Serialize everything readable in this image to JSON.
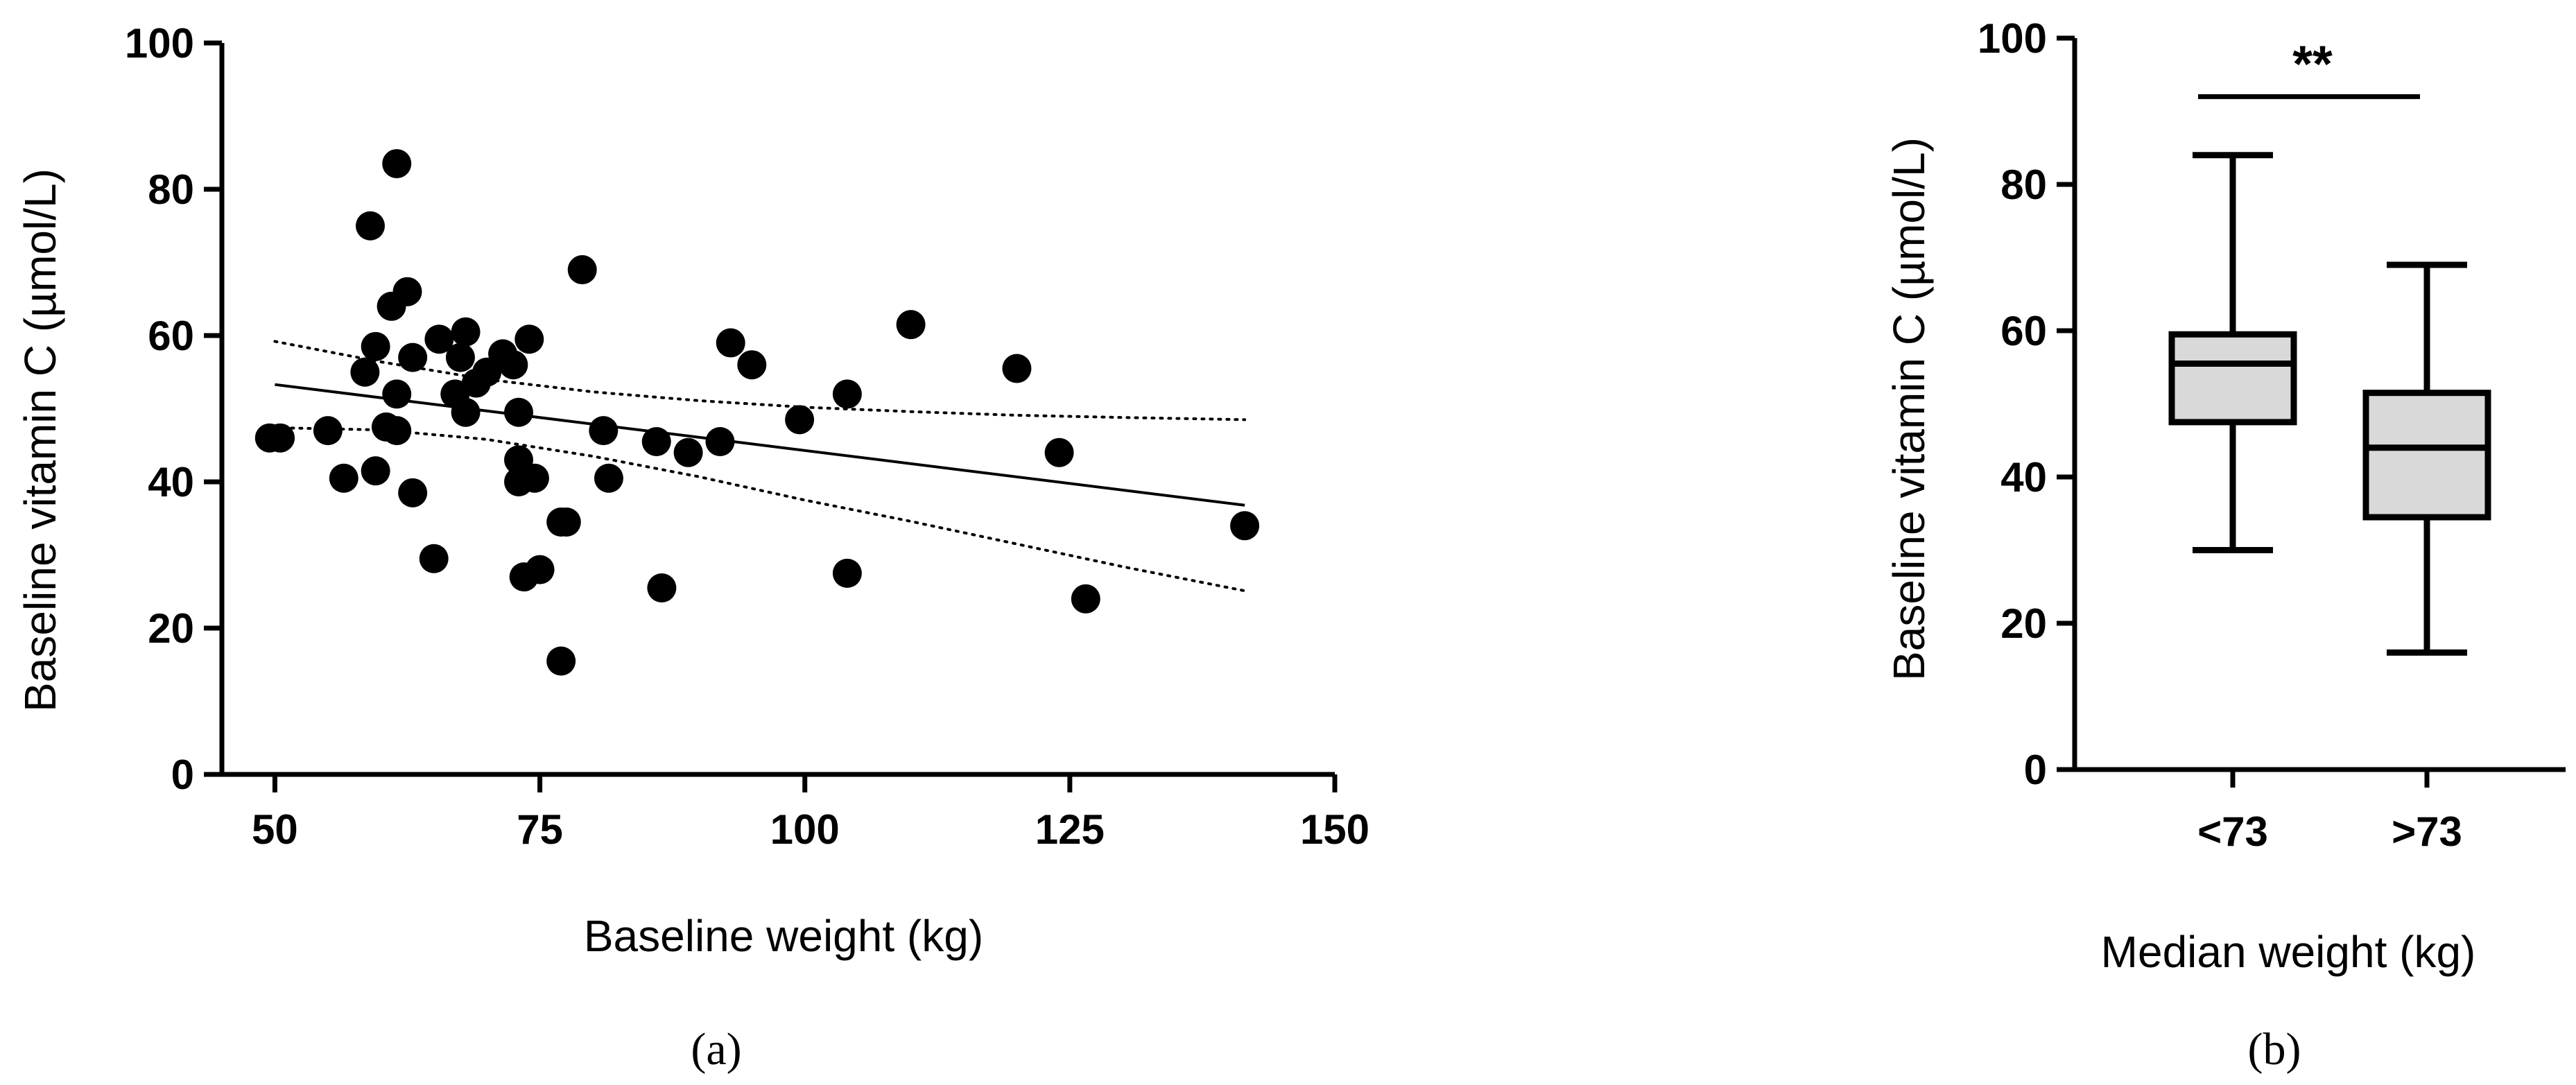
{
  "chart_data": [
    {
      "type": "scatter",
      "panel_label": "(a)",
      "xlabel": "Baseline weight (kg)",
      "ylabel": "Baseline vitamin C (µmol/L)",
      "xlim": [
        45,
        150
      ],
      "ylim": [
        0,
        100
      ],
      "xticks": [
        50,
        75,
        100,
        125,
        150
      ],
      "yticks": [
        0,
        20,
        40,
        60,
        80,
        100
      ],
      "points": [
        [
          49.5,
          46
        ],
        [
          50.5,
          46
        ],
        [
          55,
          47
        ],
        [
          56.5,
          40.5
        ],
        [
          58.5,
          55
        ],
        [
          59,
          75
        ],
        [
          59.5,
          41.5
        ],
        [
          59.5,
          58.5
        ],
        [
          60.5,
          47.5
        ],
        [
          61,
          64
        ],
        [
          61.5,
          83.5
        ],
        [
          61.5,
          47
        ],
        [
          61.5,
          52
        ],
        [
          62.5,
          66
        ],
        [
          63,
          57
        ],
        [
          63,
          38.5
        ],
        [
          65,
          29.5
        ],
        [
          65.5,
          59.5
        ],
        [
          67,
          52
        ],
        [
          67.5,
          57
        ],
        [
          68,
          60.5
        ],
        [
          68,
          49.5
        ],
        [
          69,
          53.5
        ],
        [
          70,
          55
        ],
        [
          71.5,
          57.5
        ],
        [
          72.5,
          56
        ],
        [
          73,
          49.5
        ],
        [
          73,
          43
        ],
        [
          73,
          40
        ],
        [
          73.5,
          27
        ],
        [
          74,
          59.5
        ],
        [
          74.5,
          40.5
        ],
        [
          75,
          28
        ],
        [
          77,
          15.5
        ],
        [
          77,
          34.5
        ],
        [
          77.5,
          34.5
        ],
        [
          79,
          69
        ],
        [
          81,
          47
        ],
        [
          81.5,
          40.5
        ],
        [
          86,
          45.5
        ],
        [
          86.5,
          25.5
        ],
        [
          89,
          44
        ],
        [
          92,
          45.5
        ],
        [
          93,
          59
        ],
        [
          95,
          56
        ],
        [
          99.5,
          48.5
        ],
        [
          104,
          52
        ],
        [
          104,
          27.5
        ],
        [
          110,
          61.5
        ],
        [
          120,
          55.5
        ],
        [
          124,
          44
        ],
        [
          126.5,
          24
        ],
        [
          141.5,
          34
        ]
      ],
      "regression_line": {
        "x": [
          50,
          141.5
        ],
        "y": [
          53.3,
          36.8
        ]
      },
      "confidence_band": {
        "x": [
          50,
          60,
          70,
          80,
          90,
          100,
          110,
          120,
          130,
          141.5
        ],
        "upper": [
          59.2,
          56.4,
          54.0,
          52.3,
          51.1,
          50.2,
          49.6,
          49.1,
          48.8,
          48.5
        ],
        "lower": [
          47.4,
          47.1,
          45.8,
          43.5,
          40.7,
          37.5,
          34.6,
          31.5,
          28.4,
          25.1
        ]
      }
    },
    {
      "type": "box",
      "panel_label": "(b)",
      "xlabel": "Median weight (kg)",
      "ylabel": "Baseline vitamin C (µmol/L)",
      "ylim": [
        0,
        100
      ],
      "yticks": [
        0,
        20,
        40,
        60,
        80,
        100
      ],
      "categories": [
        "<73",
        ">73"
      ],
      "boxes": [
        {
          "category": "<73",
          "min": 30,
          "q1": 47.5,
          "median": 55.5,
          "q3": 59.5,
          "max": 84
        },
        {
          "category": ">73",
          "min": 16,
          "q1": 34.5,
          "median": 44,
          "q3": 51.5,
          "max": 69
        }
      ],
      "significance": {
        "label": "**",
        "y": 92
      },
      "box_fill": "#d9d9d9"
    }
  ]
}
